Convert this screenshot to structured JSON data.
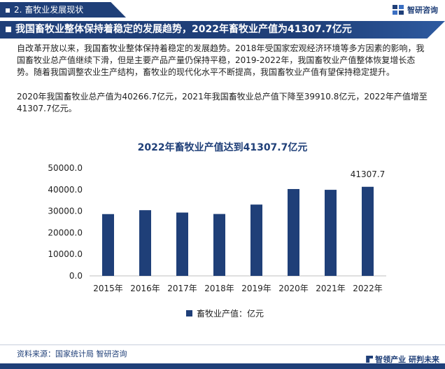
{
  "header": {
    "section": "2. 畜牧业发展现状",
    "brand": "智研咨询"
  },
  "headline": "我国畜牧业整体保持着稳定的发展趋势，2022年畜牧业产值为41307.7亿元",
  "paragraphs": [
    "自改革开放以来，我国畜牧业整体保持着稳定的发展趋势。2018年受国家宏观经济环境等多方因素的影响，我国畜牧业总产值继续下滑，但是主要产品产量仍保持平稳，2019-2022年，我国畜牧业产值整体恢复增长态势。随着我国调整农业生产结构，畜牧业的现代化水平不断提高，我国畜牧业产值有望保持稳定提升。",
    "2020年我国畜牧业总产值为40266.7亿元，2021年我国畜牧业总产值下降至39910.8亿元，2022年产值增至41307.7亿元。"
  ],
  "chart_data": {
    "type": "bar",
    "title": "2022年畜牧业产值达到41307.7亿元",
    "categories": [
      "2015年",
      "2016年",
      "2017年",
      "2018年",
      "2019年",
      "2020年",
      "2021年",
      "2022年"
    ],
    "series": [
      {
        "name": "畜牧业产值：亿元",
        "values": [
          28649.0,
          30461.2,
          29361.2,
          28697.4,
          33064.3,
          40266.7,
          39910.8,
          41307.7
        ]
      }
    ],
    "ylim": [
      0,
      50000
    ],
    "yticks": [
      "0.0",
      "10000.0",
      "20000.0",
      "30000.0",
      "40000.0",
      "50000.0"
    ],
    "data_labels": [
      {
        "index": 7,
        "text": "41307.7"
      }
    ],
    "bar_color": "#1f3f78",
    "legend": "bottom",
    "grid": false
  },
  "footer": {
    "source": "资料来源：国家统计局 智研咨询",
    "slogan": "智领产业  研判未来"
  },
  "icons": {
    "brand": "brand-logo-icon",
    "footer": "footer-logo-icon"
  },
  "colors": {
    "primary": "#1f3f78"
  }
}
